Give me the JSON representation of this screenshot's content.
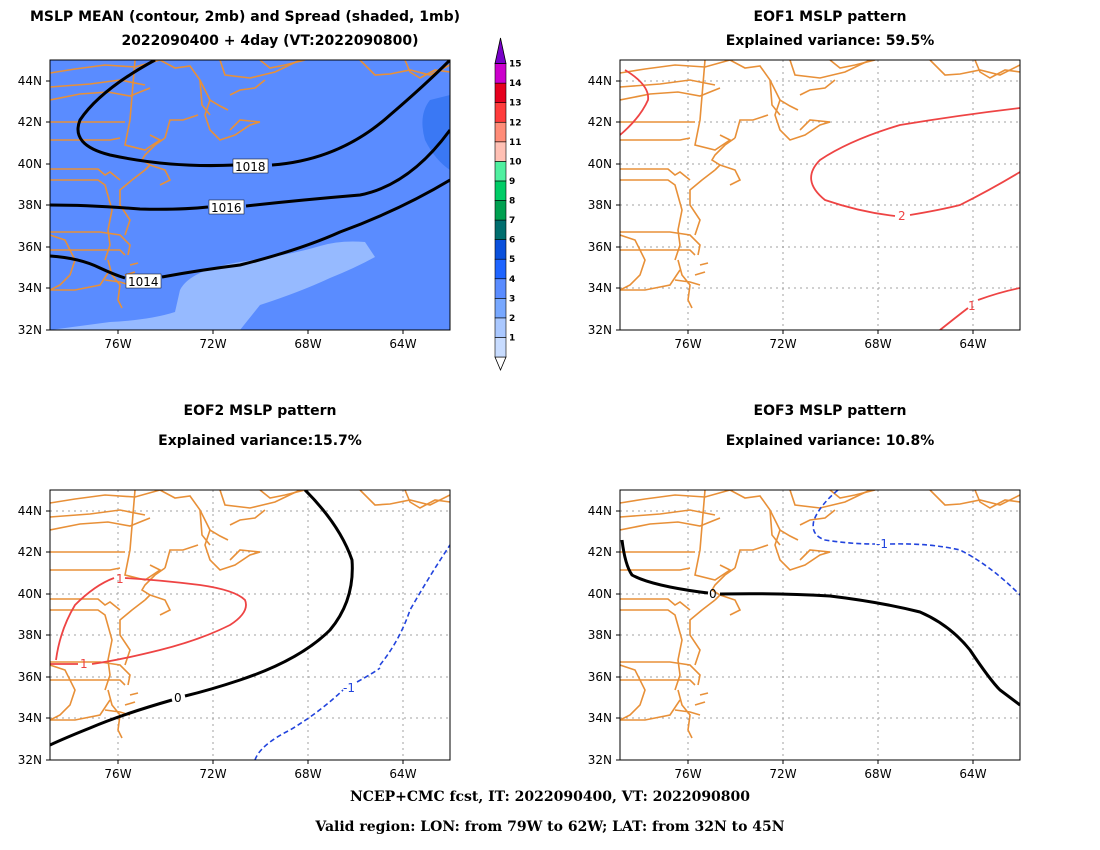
{
  "panels": {
    "mean": {
      "title_line1": "MSLP MEAN (contour, 2mb) and Spread (shaded, 1mb)",
      "title_line2": "2022090400 + 4day (VT:2022090800)",
      "contour_labels": [
        "1018",
        "1016",
        "1014"
      ]
    },
    "eof1": {
      "title": "EOF1 MSLP pattern",
      "variance": "Explained variance: 59.5%",
      "contour_labels": [
        "2",
        "1"
      ]
    },
    "eof2": {
      "title": "EOF2 MSLP pattern",
      "variance": "Explained variance:15.7%",
      "contour_labels": [
        "1",
        "1",
        "0",
        "-1"
      ]
    },
    "eof3": {
      "title": "EOF3 MSLP pattern",
      "variance": "Explained variance: 10.8%",
      "contour_labels": [
        "0",
        "-1"
      ]
    }
  },
  "axes": {
    "lat_labels": [
      "44N",
      "42N",
      "40N",
      "38N",
      "36N",
      "34N",
      "32N"
    ],
    "lon_labels": [
      "76W",
      "72W",
      "68W",
      "64W"
    ]
  },
  "colorbar": {
    "levels": [
      "1",
      "2",
      "3",
      "4",
      "5",
      "6",
      "7",
      "8",
      "9",
      "10",
      "11",
      "12",
      "13",
      "14",
      "15"
    ],
    "colors": [
      "#c8dcff",
      "#aac8ff",
      "#78a8ff",
      "#5a8cff",
      "#1e64ff",
      "#0a50dc",
      "#006e6e",
      "#00a050",
      "#00cc66",
      "#50f0a0",
      "#ffc0b4",
      "#ff8c78",
      "#ff3c3c",
      "#e6001e",
      "#cc00cc",
      "#7800c8"
    ]
  },
  "colors": {
    "coast": "#e89038",
    "positive_contour": "#ee3a3a",
    "negative_contour": "#2244dd",
    "zero_contour": "#000000",
    "spread_base": "#5a8cff",
    "spread_low": "#96baff",
    "spread_high": "#3a78f4"
  },
  "footer": {
    "line1": "NCEP+CMC fcst, IT: 2022090400, VT: 2022090800",
    "line2": "Valid region: LON: from 79W to 62W; LAT: from 32N to 45N"
  }
}
